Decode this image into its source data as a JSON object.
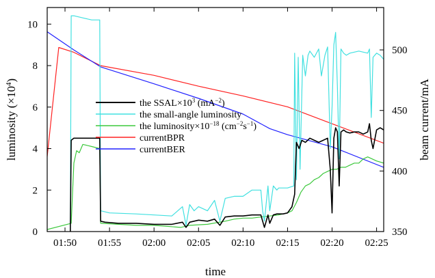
{
  "chart_data": {
    "type": "line",
    "xlabel": "time",
    "ylabel_left": "luminosity  (×10",
    "ylabel_left_sup": "4",
    "ylabel_left_tail": ")",
    "ylabel_right": "beam current/mA",
    "x_ticks": [
      "01:50",
      "01:55",
      "02:00",
      "02:05",
      "02:10",
      "02:15",
      "02:20",
      "02:25"
    ],
    "x_tick_minutes": [
      50,
      55,
      60,
      65,
      70,
      75,
      80,
      85
    ],
    "xlim_minutes_after_0100": [
      48.0,
      85.8
    ],
    "y_left_ticks": [
      "0",
      "2",
      "4",
      "6",
      "8",
      "10"
    ],
    "ylim_left": [
      0,
      10.8
    ],
    "y_right_ticks": [
      "350",
      "400",
      "450",
      "500"
    ],
    "ylim_right": [
      350,
      535
    ],
    "grid": false,
    "legend_position": "center-left",
    "series": [
      {
        "name": "the SSAL×10",
        "name_sup": "3",
        "name_tail": " (mA",
        "name_sup2": "−2",
        "name_tail2": ")",
        "axis": "left",
        "color": "#000000",
        "x": [
          50.6,
          50.7,
          51.0,
          52.0,
          53.0,
          53.9,
          54.0,
          54.5,
          56.0,
          58.0,
          60.0,
          62.0,
          63.2,
          63.6,
          64.0,
          64.5,
          65.0,
          66.0,
          66.8,
          67.4,
          68.0,
          69.0,
          70.0,
          71.0,
          72.0,
          72.2,
          72.4,
          72.8,
          73.0,
          73.4,
          73.8,
          74.0,
          74.5,
          75.0,
          75.5,
          75.8,
          76.0,
          76.3,
          76.6,
          77.0,
          77.5,
          78.0,
          78.5,
          79.0,
          79.5,
          79.8,
          80.0,
          80.2,
          80.4,
          80.6,
          80.8,
          81.0,
          81.3,
          81.6,
          82.0,
          82.5,
          83.0,
          83.5,
          84.0,
          84.2,
          84.4,
          84.6,
          85.0,
          85.4,
          85.8
        ],
        "y": [
          0,
          4.4,
          4.5,
          4.5,
          4.5,
          4.5,
          0.5,
          0.45,
          0.4,
          0.4,
          0.35,
          0.35,
          0.45,
          0.2,
          0.45,
          0.5,
          0.55,
          0.5,
          0.6,
          0.3,
          0.7,
          0.75,
          0.75,
          0.8,
          0.8,
          0.5,
          0.2,
          0.8,
          0.4,
          0.8,
          0.85,
          0.85,
          0.85,
          0.9,
          1.2,
          1.8,
          4.3,
          4.0,
          4.4,
          4.3,
          4.5,
          4.4,
          4.3,
          4.4,
          4.5,
          3.0,
          0.9,
          4.5,
          5.0,
          4.8,
          2.2,
          4.8,
          4.9,
          4.8,
          4.75,
          4.8,
          4.8,
          4.7,
          4.8,
          5.2,
          4.4,
          4.0,
          4.9,
          5.0,
          4.9
        ]
      },
      {
        "name": "the small-angle luminosity",
        "axis": "left",
        "color": "#40e0e0",
        "x": [
          50.6,
          50.7,
          51.0,
          52.0,
          53.0,
          53.9,
          54.0,
          55.0,
          58.0,
          60.0,
          62.0,
          63.2,
          63.6,
          64.0,
          64.5,
          65.0,
          66.0,
          66.8,
          67.4,
          68.0,
          69.0,
          70.0,
          71.0,
          72.0,
          72.2,
          72.4,
          72.8,
          73.0,
          73.4,
          73.8,
          74.0,
          75.0,
          75.7,
          75.8,
          76.0,
          76.2,
          76.4,
          76.7,
          77.0,
          77.3,
          77.5,
          78.0,
          78.5,
          78.8,
          79.2,
          79.5,
          79.8,
          80.0,
          80.2,
          80.4,
          80.6,
          80.8,
          81.0,
          81.3,
          81.6,
          82.0,
          83.0,
          84.0,
          84.2,
          84.4,
          84.6,
          85.0,
          85.4,
          85.8
        ],
        "y": [
          0,
          10.4,
          10.4,
          10.3,
          10.2,
          10.2,
          1.0,
          0.9,
          0.85,
          0.8,
          0.75,
          1.2,
          0.3,
          1.3,
          1.0,
          1.2,
          1.0,
          1.5,
          0.5,
          1.6,
          1.7,
          1.7,
          2.0,
          2.0,
          1.0,
          0.5,
          2.2,
          1.0,
          2.2,
          2.0,
          2.1,
          2.1,
          2.2,
          8.6,
          2.5,
          8.4,
          3.0,
          8.5,
          7.5,
          8.5,
          8.7,
          8.4,
          8.8,
          7.5,
          8.5,
          8.9,
          4.0,
          6.0,
          9.0,
          9.6,
          7.0,
          3.5,
          8.8,
          8.6,
          8.5,
          8.6,
          8.7,
          8.6,
          8.8,
          5.5,
          8.4,
          8.6,
          8.5,
          8.3
        ]
      },
      {
        "name": "the luminosity×10",
        "name_sup": "−18",
        "name_tail": " (cm",
        "name_sup2": "−2",
        "name_tail2": "s",
        "name_sup3": "−1",
        "name_tail3": ")",
        "axis": "left",
        "color": "#3cc83c",
        "x": [
          48.0,
          50.7,
          51.0,
          51.3,
          51.6,
          52.0,
          53.0,
          53.9,
          54.0,
          56.0,
          58.0,
          60.0,
          63.0,
          64.0,
          66.0,
          68.0,
          69.0,
          70.0,
          71.0,
          72.0,
          73.0,
          74.0,
          75.0,
          75.5,
          76.0,
          76.5,
          77.0,
          77.5,
          78.0,
          78.5,
          79.0,
          79.5,
          80.0,
          80.5,
          81.0,
          81.5,
          82.0,
          82.5,
          83.0,
          83.5,
          84.0,
          84.5,
          85.0,
          85.8
        ],
        "y": [
          0.1,
          0.4,
          3.3,
          3.9,
          3.8,
          4.2,
          4.1,
          4.0,
          0.4,
          0.35,
          0.3,
          0.3,
          0.2,
          0.3,
          0.35,
          0.5,
          0.6,
          0.65,
          0.65,
          0.7,
          0.75,
          0.8,
          0.9,
          1.0,
          1.4,
          1.9,
          2.2,
          2.3,
          2.5,
          2.6,
          2.8,
          2.9,
          3.0,
          3.0,
          3.1,
          3.1,
          3.2,
          3.3,
          3.3,
          3.5,
          3.6,
          3.5,
          3.4,
          3.3
        ]
      },
      {
        "name": "currentBPR",
        "axis": "right",
        "color": "#ff2020",
        "x": [
          48.0,
          49.3,
          51.0,
          54.0,
          60.0,
          65.0,
          70.0,
          75.0,
          80.0,
          85.8
        ],
        "y": [
          412,
          502,
          498,
          487,
          479,
          470,
          462,
          453,
          439,
          423
        ]
      },
      {
        "name": "currentBER",
        "axis": "right",
        "color": "#2020ff",
        "x": [
          48.0,
          51.0,
          54.0,
          60.0,
          65.0,
          70.0,
          73.0,
          75.0,
          80.0,
          85.8
        ],
        "y": [
          515,
          500,
          486,
          472,
          460,
          447,
          435,
          430,
          420,
          403
        ]
      }
    ]
  }
}
